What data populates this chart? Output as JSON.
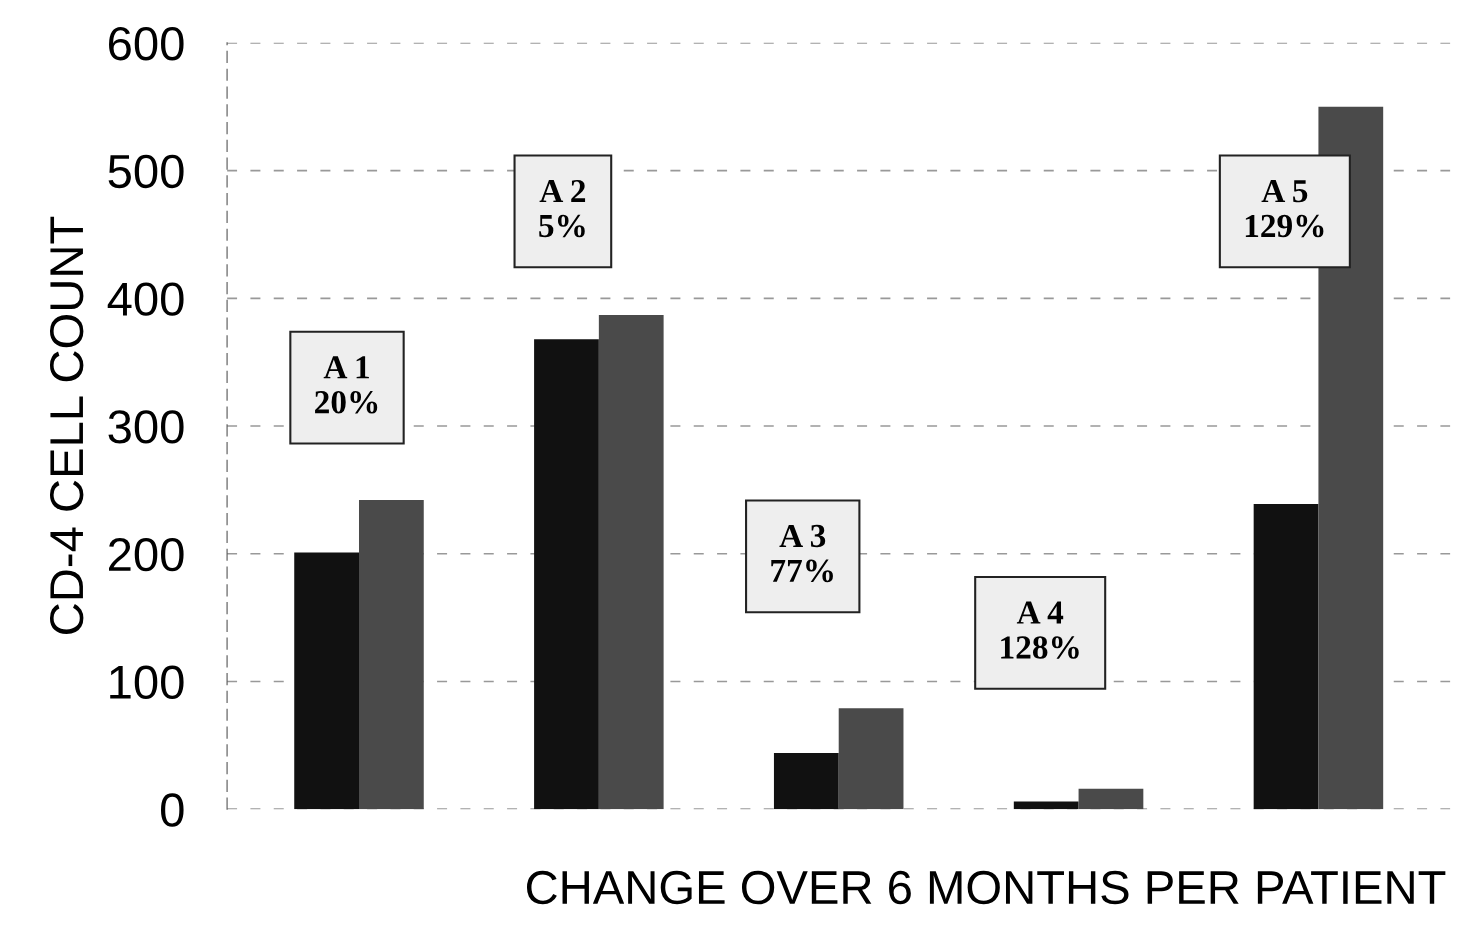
{
  "chart_data": {
    "type": "bar",
    "xlabel": "CHANGE OVER 6 MONTHS PER PATIENT",
    "ylabel": "CD-4 CELL COUNT",
    "categories": [
      null,
      null,
      null,
      null,
      null
    ],
    "series": [
      {
        "color": "#111111",
        "values": [
          201,
          368,
          44,
          6,
          239
        ]
      },
      {
        "color": "#4a4a4a",
        "values": [
          242,
          387,
          79,
          16,
          550
        ]
      }
    ],
    "ylim": [
      0,
      600
    ],
    "yticks": [
      0,
      100,
      200,
      300,
      400,
      500,
      600
    ],
    "grid": "y",
    "annotations": [
      "A 1\n20%",
      "A 2\n5%",
      "A 3\n77%",
      "A 4\n128%",
      "A 5\n129%"
    ]
  }
}
